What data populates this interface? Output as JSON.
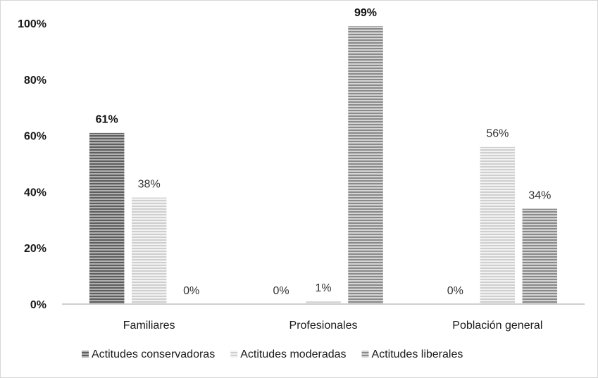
{
  "chart_data": {
    "type": "bar",
    "categories": [
      "Familiares",
      "Profesionales",
      "Población general"
    ],
    "series": [
      {
        "name": "Actitudes conservadoras",
        "values": [
          61,
          0,
          0
        ],
        "labels": [
          "61%",
          "0%",
          "0%"
        ],
        "bold_labels": [
          true,
          false,
          false
        ],
        "color": "#8c8c8c"
      },
      {
        "name": "Actitudes moderadas",
        "values": [
          38,
          1,
          56
        ],
        "labels": [
          "38%",
          "1%",
          "56%"
        ],
        "bold_labels": [
          false,
          false,
          false
        ],
        "color": "#d9d9d9"
      },
      {
        "name": "Actitudes liberales",
        "values": [
          0,
          99,
          34
        ],
        "labels": [
          "0%",
          "99%",
          "34%"
        ],
        "bold_labels": [
          false,
          true,
          false
        ],
        "color": "#a6a6a6"
      }
    ],
    "y_ticks": [
      "0%",
      "20%",
      "40%",
      "60%",
      "80%",
      "100%"
    ],
    "ylim": [
      0,
      100
    ],
    "grid": false,
    "legend_position": "bottom"
  }
}
